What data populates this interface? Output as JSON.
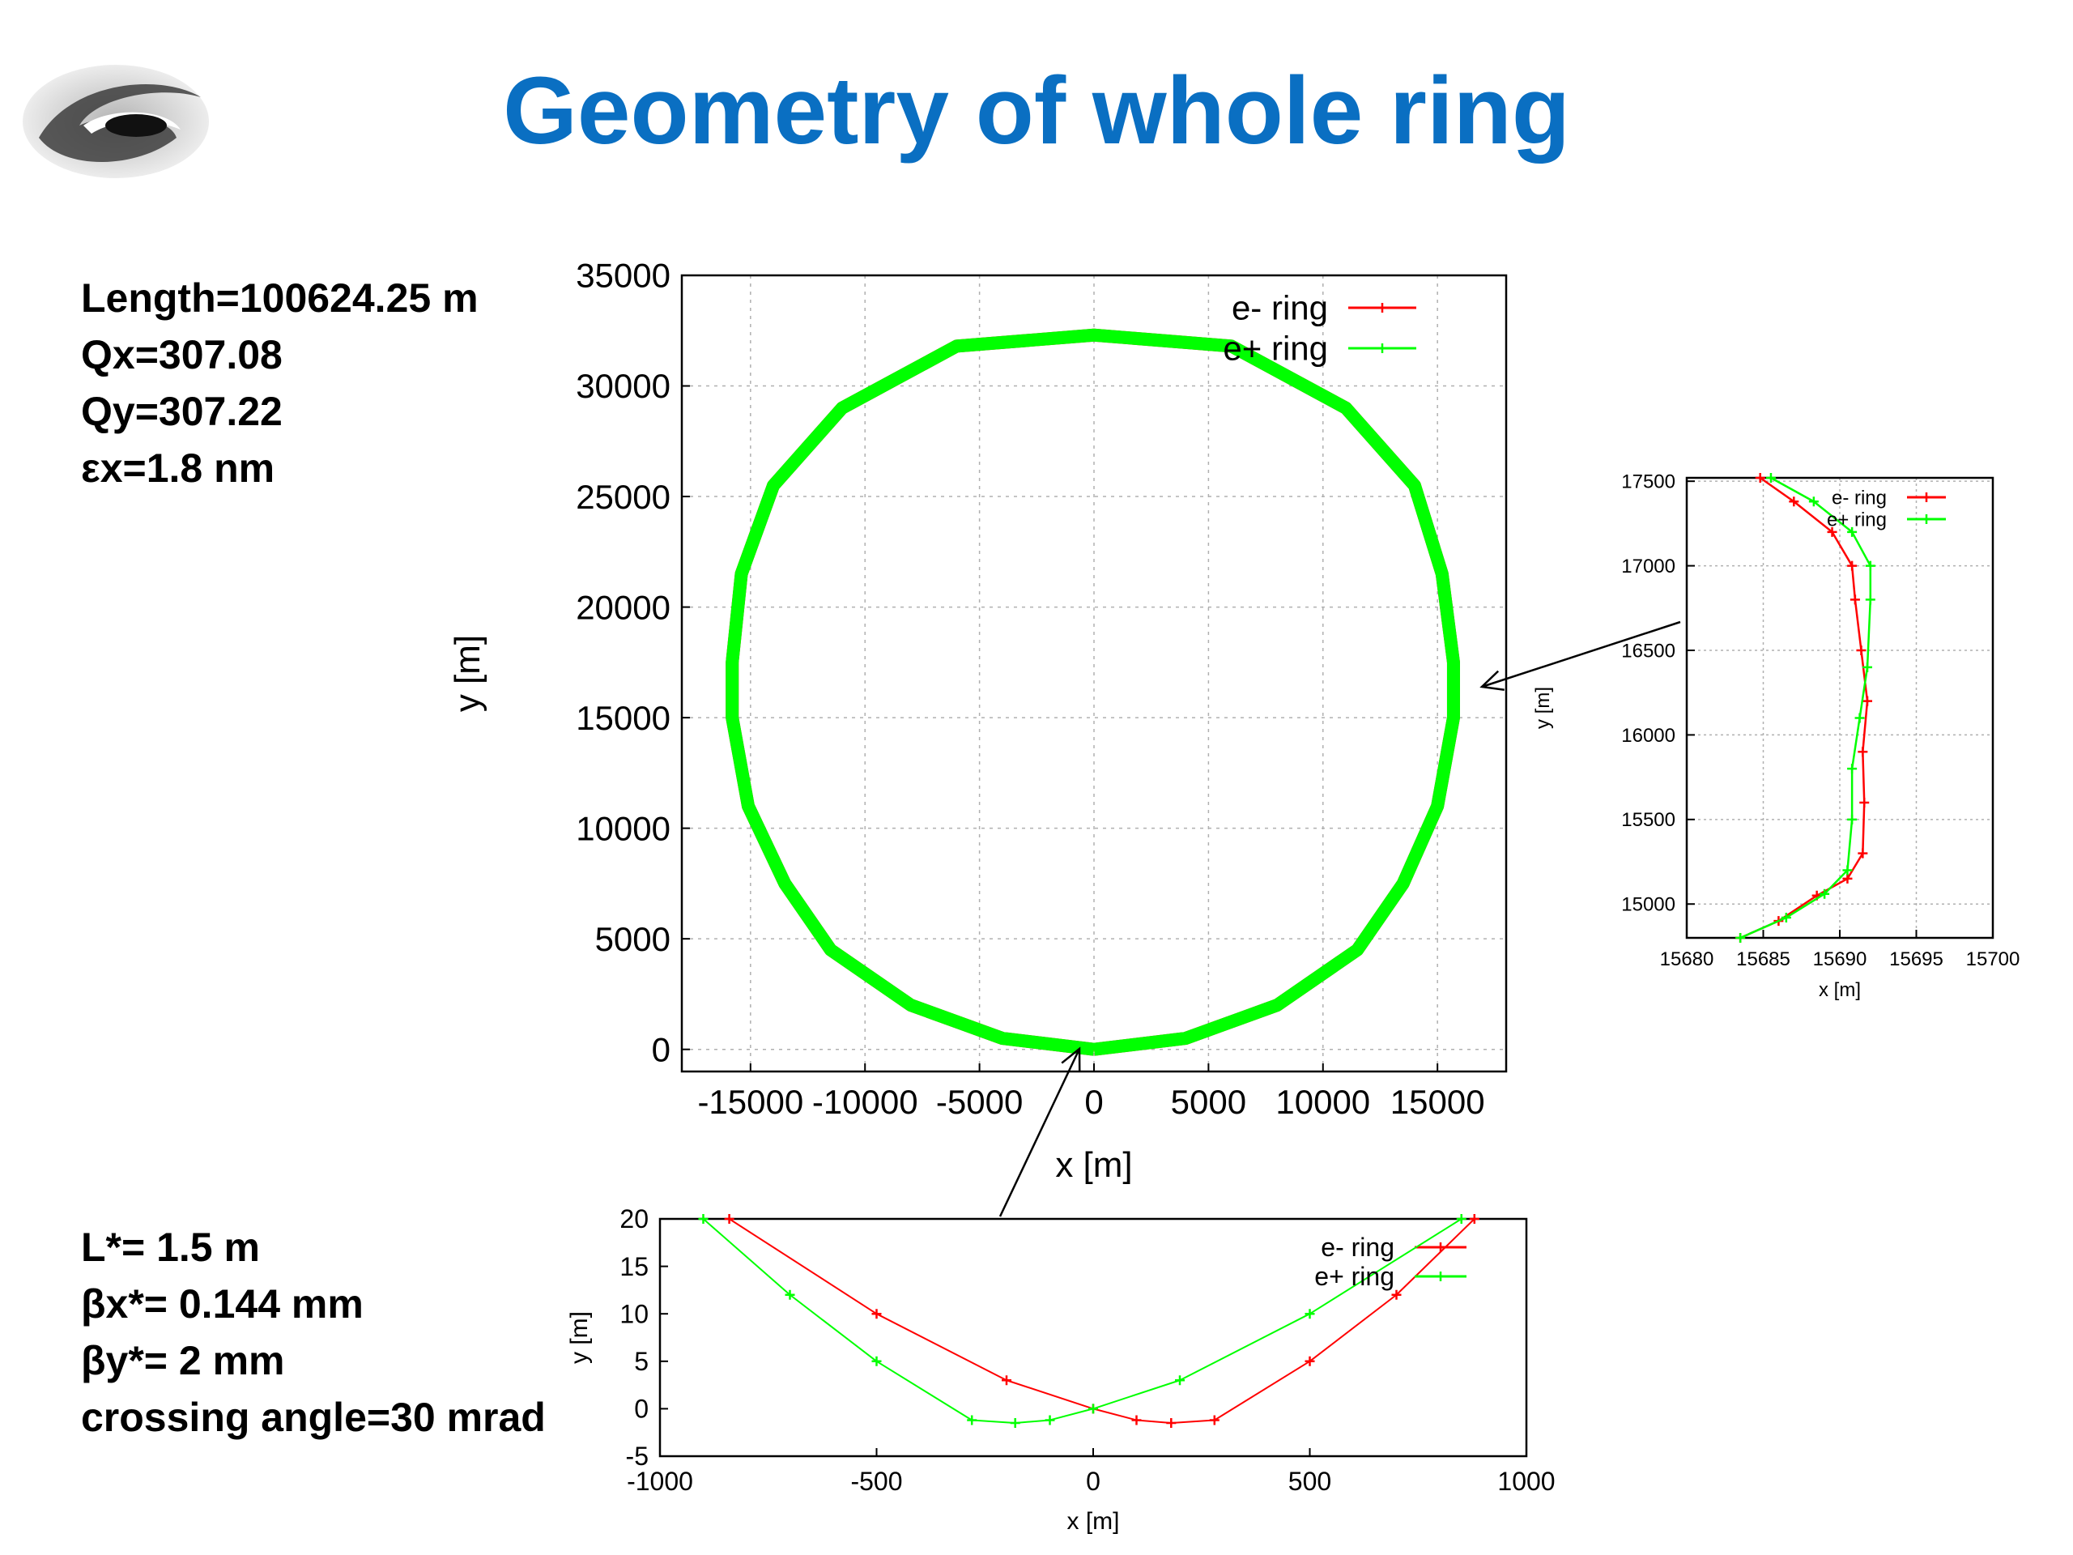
{
  "slide": {
    "title": "Geometry of whole ring",
    "logo_icon": "ihep-logo-icon"
  },
  "params_top": {
    "length": "Length=100624.25 m",
    "qx": "Qx=307.08",
    "qy": "Qy=307.22",
    "emittance_x": "εx=1.8 nm"
  },
  "params_bottom": {
    "l_star": "L*= 1.5 m",
    "beta_x": "βx*= 0.144 mm",
    "beta_y": "βy*= 2 mm",
    "crossing_angle": "crossing angle=30 mrad"
  },
  "colors": {
    "title": "#0a6fc2",
    "e_minus": "#ff0000",
    "e_plus": "#00ff00",
    "grid": "#b0b0b0"
  },
  "chart_data": [
    {
      "id": "whole-ring",
      "type": "line",
      "title": "",
      "xlabel": "x [m]",
      "ylabel": "y [m]",
      "xlim": [
        -18000,
        18000
      ],
      "ylim": [
        -1000,
        35000
      ],
      "xticks": [
        -15000,
        -10000,
        -5000,
        0,
        5000,
        10000,
        15000
      ],
      "xtick_labels": [
        "-15000",
        "-10000",
        "-5000",
        "0",
        "5000",
        "10000",
        "15000"
      ],
      "yticks": [
        0,
        5000,
        10000,
        15000,
        20000,
        25000,
        30000,
        35000
      ],
      "ytick_labels": [
        "0",
        "5000",
        "10000",
        "15000",
        "20000",
        "25000",
        "30000",
        "35000"
      ],
      "grid": true,
      "legend_position": "top-right",
      "series": [
        {
          "name": "e- ring",
          "color": "#ff0000",
          "points": [
            [
              0,
              0
            ],
            [
              4000,
              500
            ],
            [
              8000,
              2000
            ],
            [
              11500,
              4500
            ],
            [
              13500,
              7500
            ],
            [
              15000,
              11000
            ],
            [
              15700,
              15000
            ],
            [
              15700,
              17500
            ],
            [
              15200,
              21500
            ],
            [
              14000,
              25500
            ],
            [
              11000,
              29000
            ],
            [
              6000,
              31800
            ],
            [
              0,
              32300
            ],
            [
              -6000,
              31800
            ],
            [
              -11000,
              29000
            ],
            [
              -14000,
              25500
            ],
            [
              -15400,
              21500
            ],
            [
              -15800,
              17500
            ],
            [
              -15800,
              15000
            ],
            [
              -15100,
              11000
            ],
            [
              -13500,
              7500
            ],
            [
              -11500,
              4500
            ],
            [
              -8000,
              2000
            ],
            [
              -4000,
              500
            ],
            [
              0,
              0
            ]
          ]
        },
        {
          "name": "e+ ring",
          "color": "#00ff00",
          "points": [
            [
              0,
              0
            ],
            [
              4000,
              500
            ],
            [
              8000,
              2000
            ],
            [
              11500,
              4500
            ],
            [
              13500,
              7500
            ],
            [
              15000,
              11000
            ],
            [
              15700,
              15000
            ],
            [
              15700,
              17500
            ],
            [
              15200,
              21500
            ],
            [
              14000,
              25500
            ],
            [
              11000,
              29000
            ],
            [
              6000,
              31800
            ],
            [
              0,
              32300
            ],
            [
              -6000,
              31800
            ],
            [
              -11000,
              29000
            ],
            [
              -14000,
              25500
            ],
            [
              -15400,
              21500
            ],
            [
              -15800,
              17500
            ],
            [
              -15800,
              15000
            ],
            [
              -15100,
              11000
            ],
            [
              -13500,
              7500
            ],
            [
              -11500,
              4500
            ],
            [
              -8000,
              2000
            ],
            [
              -4000,
              500
            ],
            [
              0,
              0
            ]
          ]
        }
      ]
    },
    {
      "id": "zoom-arc",
      "type": "line",
      "title": "",
      "xlabel": "x [m]",
      "ylabel": "y [m]",
      "xlim": [
        15680,
        15700
      ],
      "ylim": [
        14800,
        17520
      ],
      "xticks": [
        15680,
        15685,
        15690,
        15695,
        15700
      ],
      "xtick_labels": [
        "15680",
        "15685",
        "15690",
        "15695",
        "15700"
      ],
      "yticks": [
        15000,
        15500,
        16000,
        16500,
        17000,
        17500
      ],
      "ytick_labels": [
        "15000",
        "15500",
        "16000",
        "16500",
        "17000",
        "17500"
      ],
      "grid": true,
      "legend_position": "top-right",
      "series": [
        {
          "name": "e- ring",
          "color": "#ff0000",
          "points": [
            [
              15683.5,
              14800
            ],
            [
              15686,
              14900
            ],
            [
              15688.5,
              15050
            ],
            [
              15690.5,
              15150
            ],
            [
              15691.5,
              15300
            ],
            [
              15691.6,
              15600
            ],
            [
              15691.5,
              15900
            ],
            [
              15691.8,
              16200
            ],
            [
              15691.4,
              16500
            ],
            [
              15691,
              16800
            ],
            [
              15690.8,
              17000
            ],
            [
              15689.5,
              17200
            ],
            [
              15687,
              17380
            ],
            [
              15684.8,
              17520
            ]
          ]
        },
        {
          "name": "e+ ring",
          "color": "#00ff00",
          "points": [
            [
              15683.5,
              14800
            ],
            [
              15686.5,
              14920
            ],
            [
              15689,
              15060
            ],
            [
              15690.5,
              15200
            ],
            [
              15690.8,
              15500
            ],
            [
              15690.8,
              15800
            ],
            [
              15691.3,
              16100
            ],
            [
              15691.8,
              16400
            ],
            [
              15692,
              16800
            ],
            [
              15692,
              17000
            ],
            [
              15690.8,
              17200
            ],
            [
              15688.3,
              17380
            ],
            [
              15685.5,
              17520
            ]
          ]
        }
      ]
    },
    {
      "id": "zoom-ip",
      "type": "line",
      "title": "",
      "xlabel": "x [m]",
      "ylabel": "y [m]",
      "xlim": [
        -1000,
        1000
      ],
      "ylim": [
        -5,
        20
      ],
      "xticks": [
        -1000,
        -500,
        0,
        500,
        1000
      ],
      "xtick_labels": [
        "-1000",
        "-500",
        "0",
        "500",
        "1000"
      ],
      "yticks": [
        -5,
        0,
        5,
        10,
        15,
        20
      ],
      "ytick_labels": [
        "-5",
        "0",
        "5",
        "10",
        "15",
        "20"
      ],
      "grid": false,
      "legend_position": "top-right",
      "series": [
        {
          "name": "e- ring",
          "color": "#ff0000",
          "points": [
            [
              -840,
              20
            ],
            [
              -500,
              10
            ],
            [
              -200,
              3
            ],
            [
              0,
              0
            ],
            [
              100,
              -1.2
            ],
            [
              180,
              -1.5
            ],
            [
              280,
              -1.2
            ],
            [
              500,
              5
            ],
            [
              700,
              12
            ],
            [
              880,
              20
            ]
          ]
        },
        {
          "name": "e+ ring",
          "color": "#00ff00",
          "points": [
            [
              -900,
              20
            ],
            [
              -700,
              12
            ],
            [
              -500,
              5
            ],
            [
              -280,
              -1.2
            ],
            [
              -180,
              -1.5
            ],
            [
              -100,
              -1.2
            ],
            [
              0,
              0
            ],
            [
              200,
              3
            ],
            [
              500,
              10
            ],
            [
              850,
              20
            ]
          ]
        }
      ]
    }
  ]
}
